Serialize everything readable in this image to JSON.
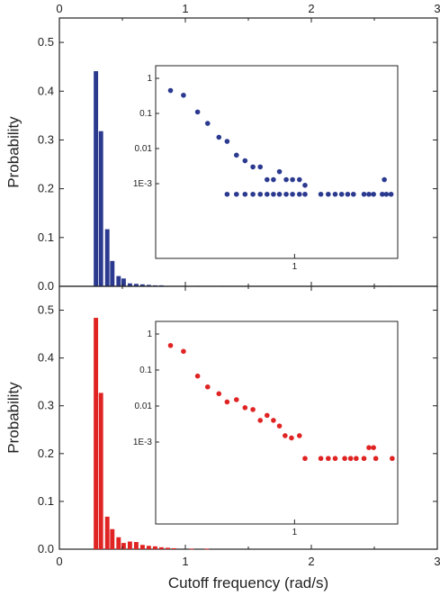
{
  "chart_data": [
    {
      "type": "bar",
      "panel": "top",
      "color": "#2b3a8f",
      "xlabel": "",
      "ylabel": "Probability",
      "xlim": [
        0,
        3
      ],
      "ylim": [
        0,
        0.55
      ],
      "xticks": [
        "0",
        "1",
        "2",
        "3"
      ],
      "yticks": [
        "0.0",
        "0.1",
        "0.2",
        "0.3",
        "0.4",
        "0.5"
      ],
      "bin_width": 0.035,
      "x": [
        0.29,
        0.33,
        0.38,
        0.42,
        0.47,
        0.51,
        0.56,
        0.61,
        0.66,
        0.71,
        0.76,
        0.81,
        0.86,
        1.1,
        1.3,
        2.5,
        2.62
      ],
      "values": [
        0.441,
        0.318,
        0.117,
        0.052,
        0.021,
        0.016,
        0.006,
        0.005,
        0.004,
        0.003,
        0.002,
        0.002,
        0.001,
        0.001,
        0.001,
        0.001,
        0.001
      ],
      "inset": {
        "type": "scatter",
        "yscale": "log",
        "xscale": "log",
        "yticks": [
          "1",
          "0.1",
          "0.01",
          "1E-3"
        ],
        "xticks": [
          "1"
        ],
        "points": [
          [
            0.29,
            0.45
          ],
          [
            0.33,
            0.33
          ],
          [
            0.38,
            0.11
          ],
          [
            0.42,
            0.052
          ],
          [
            0.47,
            0.021
          ],
          [
            0.51,
            0.016
          ],
          [
            0.56,
            0.0065
          ],
          [
            0.61,
            0.0045
          ],
          [
            0.66,
            0.003
          ],
          [
            0.71,
            0.003
          ],
          [
            0.76,
            0.0013
          ],
          [
            0.81,
            0.0013
          ],
          [
            0.86,
            0.0022
          ],
          [
            0.92,
            0.0013
          ],
          [
            0.98,
            0.0013
          ],
          [
            1.05,
            0.0013
          ],
          [
            1.11,
            0.0009
          ],
          [
            0.51,
            0.0005
          ],
          [
            0.56,
            0.0005
          ],
          [
            0.61,
            0.0005
          ],
          [
            0.66,
            0.0005
          ],
          [
            0.71,
            0.0005
          ],
          [
            0.76,
            0.0005
          ],
          [
            0.81,
            0.0005
          ],
          [
            0.86,
            0.0005
          ],
          [
            0.92,
            0.0005
          ],
          [
            0.98,
            0.0005
          ],
          [
            1.05,
            0.0005
          ],
          [
            1.11,
            0.0005
          ],
          [
            1.3,
            0.0005
          ],
          [
            1.4,
            0.0005
          ],
          [
            1.5,
            0.0005
          ],
          [
            1.6,
            0.0005
          ],
          [
            1.7,
            0.0005
          ],
          [
            1.8,
            0.0005
          ],
          [
            2.0,
            0.0005
          ],
          [
            2.1,
            0.0005
          ],
          [
            2.2,
            0.0005
          ],
          [
            2.4,
            0.0005
          ],
          [
            2.5,
            0.0005
          ],
          [
            2.62,
            0.0005
          ],
          [
            2.45,
            0.0013
          ]
        ]
      }
    },
    {
      "type": "bar",
      "panel": "bottom",
      "color": "#e02424",
      "xlabel": "Cutoff frequency (rad/s)",
      "ylabel": "Probability",
      "xlim": [
        0,
        3
      ],
      "ylim": [
        0,
        0.55
      ],
      "xticks": [
        "0",
        "1",
        "2",
        "3"
      ],
      "yticks": [
        "0.0",
        "0.1",
        "0.2",
        "0.3",
        "0.4",
        "0.5"
      ],
      "bin_width": 0.035,
      "x": [
        0.29,
        0.33,
        0.38,
        0.42,
        0.47,
        0.51,
        0.56,
        0.61,
        0.66,
        0.71,
        0.76,
        0.81,
        0.86,
        0.91,
        1.05,
        1.17
      ],
      "values": [
        0.484,
        0.327,
        0.068,
        0.042,
        0.025,
        0.013,
        0.016,
        0.015,
        0.009,
        0.007,
        0.006,
        0.004,
        0.003,
        0.002,
        0.001,
        0.001
      ],
      "inset": {
        "type": "scatter",
        "yscale": "log",
        "xscale": "log",
        "yticks": [
          "1",
          "0.1",
          "0.01",
          "1E-3"
        ],
        "xticks": [
          "1"
        ],
        "points": [
          [
            0.29,
            0.48
          ],
          [
            0.33,
            0.33
          ],
          [
            0.38,
            0.068
          ],
          [
            0.42,
            0.034
          ],
          [
            0.47,
            0.022
          ],
          [
            0.51,
            0.013
          ],
          [
            0.56,
            0.015
          ],
          [
            0.61,
            0.009
          ],
          [
            0.66,
            0.008
          ],
          [
            0.71,
            0.004
          ],
          [
            0.76,
            0.0055
          ],
          [
            0.81,
            0.004
          ],
          [
            0.86,
            0.0028
          ],
          [
            0.91,
            0.0015
          ],
          [
            0.97,
            0.0013
          ],
          [
            1.05,
            0.0015
          ],
          [
            1.11,
            0.00035
          ],
          [
            1.3,
            0.00035
          ],
          [
            1.4,
            0.00035
          ],
          [
            1.5,
            0.00035
          ],
          [
            1.65,
            0.00035
          ],
          [
            1.75,
            0.00035
          ],
          [
            1.85,
            0.00035
          ],
          [
            2.0,
            0.00035
          ],
          [
            2.1,
            0.0007
          ],
          [
            2.2,
            0.0007
          ],
          [
            2.25,
            0.00035
          ],
          [
            2.65,
            0.00035
          ]
        ]
      }
    }
  ]
}
